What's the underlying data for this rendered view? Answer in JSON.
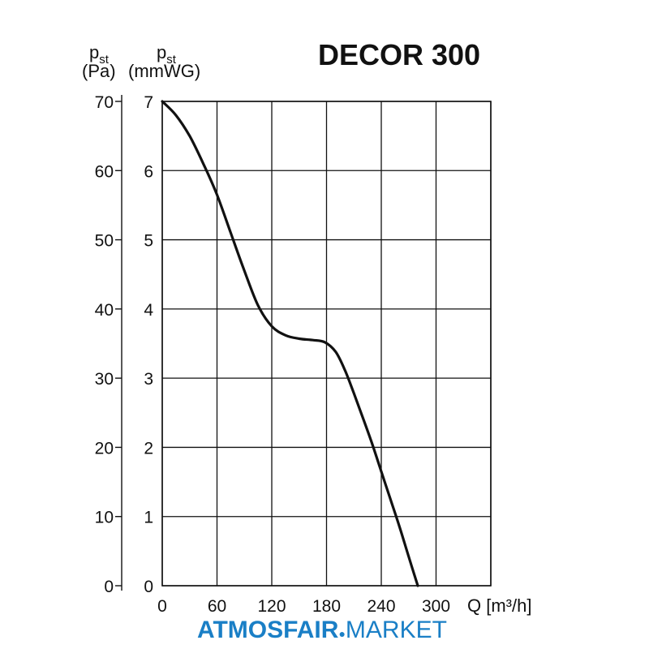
{
  "chart_data": {
    "type": "line",
    "title": "DECOR 300",
    "y_axis_outer": {
      "label_symbol": "p",
      "label_sub": "st",
      "label_unit": "(Pa)",
      "ticks": [
        "0",
        "10",
        "20",
        "30",
        "40",
        "50",
        "60",
        "70"
      ],
      "range": [
        0,
        70
      ]
    },
    "y_axis_inner": {
      "label_symbol": "p",
      "label_sub": "st",
      "label_unit": "(mmWG)",
      "ticks": [
        "0",
        "1",
        "2",
        "3",
        "4",
        "5",
        "6",
        "7"
      ],
      "range": [
        0,
        7
      ]
    },
    "x_axis": {
      "label": "Q [m³/h]",
      "ticks": [
        "0",
        "60",
        "120",
        "180",
        "240",
        "300"
      ],
      "range": [
        0,
        360
      ]
    },
    "grid": true,
    "series": [
      {
        "x": [
          0,
          15,
          30,
          45,
          60,
          75,
          90,
          105,
          120,
          135,
          150,
          165,
          178,
          190,
          200,
          210,
          220,
          230,
          240,
          250,
          260,
          270,
          280
        ],
        "y": [
          7.0,
          6.8,
          6.5,
          6.1,
          5.65,
          5.1,
          4.55,
          4.05,
          3.75,
          3.62,
          3.57,
          3.55,
          3.52,
          3.38,
          3.12,
          2.78,
          2.42,
          2.05,
          1.65,
          1.25,
          0.85,
          0.42,
          0.0
        ]
      }
    ]
  },
  "watermark": {
    "bold": "ATMOSFAIR",
    "light": "MARKET",
    "color": "#1a7fc6"
  }
}
